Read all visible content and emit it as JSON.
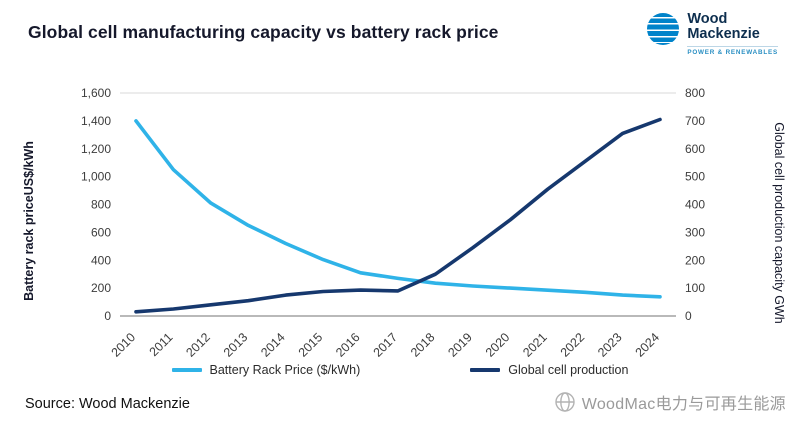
{
  "header": {
    "title": "Global cell manufacturing capacity vs battery rack price"
  },
  "logo": {
    "name_line1": "Wood",
    "name_line2": "Mackenzie",
    "tagline": "POWER & RENEWABLES",
    "brand_color": "#0083ca"
  },
  "source": "Source: Wood Mackenzie",
  "watermark": "WoodMac电力与可再生能源",
  "chart_data": {
    "type": "line",
    "categories": [
      "2010",
      "2011",
      "2012",
      "2013",
      "2014",
      "2015",
      "2016",
      "2017",
      "2018",
      "2019",
      "2020",
      "2021",
      "2022",
      "2023",
      "2024"
    ],
    "series": [
      {
        "name": "Battery Rack Price ($/kWh)",
        "axis": "left",
        "color": "#2fb3e8",
        "values": [
          1400,
          1050,
          810,
          650,
          520,
          405,
          310,
          270,
          235,
          215,
          200,
          185,
          170,
          150,
          138
        ]
      },
      {
        "name": "Global cell production",
        "axis": "right",
        "color": "#16386e",
        "values": [
          15,
          25,
          40,
          55,
          75,
          88,
          93,
          90,
          150,
          245,
          345,
          455,
          555,
          655,
          705
        ]
      }
    ],
    "left_axis": {
      "label": "Battery rack priceUS$/kWh",
      "min": 0,
      "max": 1600,
      "step": 200
    },
    "right_axis": {
      "label": "Global cell production capacity GWh",
      "min": 0,
      "max": 800,
      "step": 100
    },
    "grid": "top-and-bottom-border-only",
    "legend_position": "bottom"
  }
}
